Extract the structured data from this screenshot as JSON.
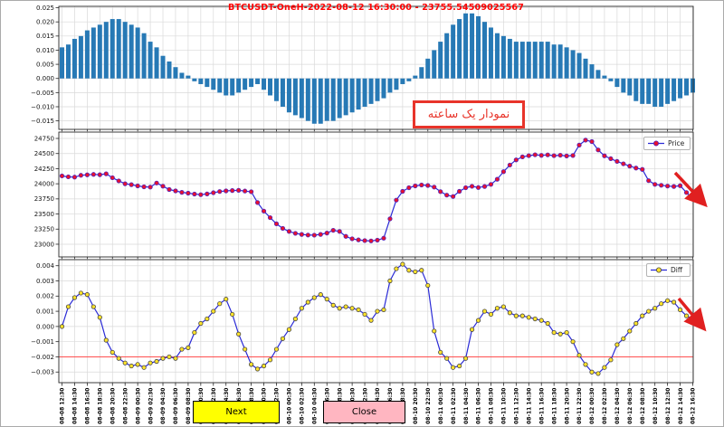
{
  "figure": {
    "title": "BTCUSDT-OneH-2022-08-12 16:30:00 - 23755.54509025567",
    "title_color": "#ff0000",
    "annotation": {
      "text": "نمودار یک ساعته",
      "color": "#e8342a"
    },
    "buttons": [
      {
        "label": "Next",
        "bg": "#ffff00"
      },
      {
        "label": "Close",
        "bg": "#ffb6c1"
      }
    ],
    "arrows": [
      {
        "location": "price-chart-end",
        "direction": "down-right",
        "color": "#e02020"
      },
      {
        "location": "diff-chart-end",
        "direction": "down-right",
        "color": "#e02020"
      }
    ]
  },
  "x_axis": {
    "points_count": 101,
    "label_every_nth_point": 2,
    "tick_labels": [
      "08-08 12:30",
      "08-08 14:30",
      "08-08 16:30",
      "08-08 18:30",
      "08-08 20:30",
      "08-08 22:30",
      "08-09 00:30",
      "08-09 02:30",
      "08-09 04:30",
      "08-09 06:30",
      "08-09 08:30",
      "08-09 10:30",
      "08-09 12:30",
      "08-09 14:30",
      "08-09 16:30",
      "08-09 18:30",
      "08-09 20:30",
      "08-09 22:30",
      "08-10 00:30",
      "08-10 02:30",
      "08-10 04:30",
      "08-10 06:30",
      "08-10 08:30",
      "08-10 10:30",
      "08-10 12:30",
      "08-10 14:30",
      "08-10 16:30",
      "08-10 18:30",
      "08-10 20:30",
      "08-10 22:30",
      "08-11 00:30",
      "08-11 02:30",
      "08-11 04:30",
      "08-11 06:30",
      "08-11 08:30",
      "08-11 10:30",
      "08-11 12:30",
      "08-11 14:30",
      "08-11 16:30",
      "08-11 18:30",
      "08-11 20:30",
      "08-11 22:30",
      "08-12 00:30",
      "08-12 02:30",
      "08-12 04:30",
      "08-12 06:30",
      "08-12 08:30",
      "08-12 10:30",
      "08-12 12:30",
      "08-12 14:30",
      "08-12 16:30"
    ]
  },
  "chart_data": [
    {
      "type": "bar",
      "name": "macd-histogram",
      "bar_color": "#2779b5",
      "ylim": [
        -0.018,
        0.0255
      ],
      "yticks": [
        {
          "v": 0.025,
          "label": "0.025"
        },
        {
          "v": 0.02,
          "label": "0.020"
        },
        {
          "v": 0.015,
          "label": "0.015"
        },
        {
          "v": 0.01,
          "label": "0.010"
        },
        {
          "v": 0.005,
          "label": "0.005"
        },
        {
          "v": 0.0,
          "label": "0.000"
        },
        {
          "v": -0.005,
          "label": "−0.005"
        },
        {
          "v": -0.01,
          "label": "−0.010"
        },
        {
          "v": -0.015,
          "label": "−0.015"
        }
      ],
      "values": [
        0.011,
        0.012,
        0.014,
        0.015,
        0.017,
        0.018,
        0.019,
        0.02,
        0.021,
        0.021,
        0.02,
        0.019,
        0.018,
        0.016,
        0.013,
        0.011,
        0.008,
        0.006,
        0.004,
        0.002,
        0.001,
        -0.001,
        -0.002,
        -0.003,
        -0.004,
        -0.005,
        -0.006,
        -0.006,
        -0.005,
        -0.004,
        -0.003,
        -0.002,
        -0.004,
        -0.006,
        -0.008,
        -0.01,
        -0.012,
        -0.013,
        -0.014,
        -0.015,
        -0.016,
        -0.016,
        -0.015,
        -0.015,
        -0.014,
        -0.013,
        -0.012,
        -0.011,
        -0.01,
        -0.009,
        -0.008,
        -0.007,
        -0.005,
        -0.004,
        -0.002,
        -0.001,
        0.001,
        0.004,
        0.007,
        0.01,
        0.013,
        0.016,
        0.019,
        0.021,
        0.023,
        0.023,
        0.022,
        0.02,
        0.018,
        0.016,
        0.015,
        0.014,
        0.013,
        0.013,
        0.013,
        0.013,
        0.013,
        0.013,
        0.012,
        0.012,
        0.011,
        0.01,
        0.009,
        0.007,
        0.005,
        0.003,
        0.001,
        -0.001,
        -0.003,
        -0.005,
        -0.006,
        -0.008,
        -0.009,
        -0.009,
        -0.01,
        -0.01,
        -0.009,
        -0.008,
        -0.007,
        -0.006,
        -0.005
      ]
    },
    {
      "type": "line",
      "name": "price",
      "legend": "Price",
      "line_color": "#2a2ad6",
      "marker_color": "#e8112d",
      "marker_edge": "#5522bb",
      "ylim": [
        22790,
        24855
      ],
      "yticks": [
        {
          "v": 24750,
          "label": "24750"
        },
        {
          "v": 24500,
          "label": "24500"
        },
        {
          "v": 24250,
          "label": "24250"
        },
        {
          "v": 24000,
          "label": "24000"
        },
        {
          "v": 23750,
          "label": "23750"
        },
        {
          "v": 23500,
          "label": "23500"
        },
        {
          "v": 23250,
          "label": "23250"
        },
        {
          "v": 23000,
          "label": "23000"
        }
      ],
      "values": [
        24130,
        24115,
        24110,
        24140,
        24148,
        24155,
        24150,
        24165,
        24100,
        24048,
        24000,
        23985,
        23965,
        23950,
        23945,
        24012,
        23960,
        23905,
        23882,
        23858,
        23845,
        23830,
        23820,
        23832,
        23852,
        23872,
        23882,
        23888,
        23892,
        23880,
        23868,
        23690,
        23548,
        23440,
        23338,
        23262,
        23212,
        23180,
        23162,
        23152,
        23150,
        23162,
        23185,
        23230,
        23212,
        23130,
        23090,
        23072,
        23060,
        23055,
        23068,
        23100,
        23420,
        23730,
        23875,
        23935,
        23965,
        23980,
        23972,
        23945,
        23870,
        23812,
        23790,
        23875,
        23935,
        23958,
        23938,
        23955,
        23990,
        24075,
        24200,
        24310,
        24395,
        24445,
        24465,
        24480,
        24470,
        24478,
        24465,
        24472,
        24460,
        24468,
        24640,
        24722,
        24698,
        24560,
        24462,
        24415,
        24370,
        24330,
        24292,
        24260,
        24238,
        24052,
        23990,
        23975,
        23962,
        23955,
        23968,
        23855,
        23755.5
      ]
    },
    {
      "type": "line",
      "name": "diff",
      "legend": "Diff",
      "line_color": "#2a2ad6",
      "marker_color": "#ffe32b",
      "marker_edge": "#444444",
      "ylim": [
        -0.0037,
        0.0044
      ],
      "hline": {
        "y": -0.002,
        "color": "#ff5050"
      },
      "yticks": [
        {
          "v": 0.004,
          "label": "0.004"
        },
        {
          "v": 0.003,
          "label": "0.003"
        },
        {
          "v": 0.002,
          "label": "0.002"
        },
        {
          "v": 0.001,
          "label": "0.001"
        },
        {
          "v": 0.0,
          "label": "0.000"
        },
        {
          "v": -0.001,
          "label": "−0.001"
        },
        {
          "v": -0.002,
          "label": "−0.002",
          "color": "#e03434"
        },
        {
          "v": -0.003,
          "label": "−0.003"
        }
      ],
      "values": [
        0.0,
        0.0013,
        0.0019,
        0.0022,
        0.0021,
        0.0013,
        0.0006,
        -0.0009,
        -0.0017,
        -0.0021,
        -0.0024,
        -0.0026,
        -0.0025,
        -0.0027,
        -0.0024,
        -0.0023,
        -0.0021,
        -0.002,
        -0.0021,
        -0.0015,
        -0.0014,
        -0.0004,
        0.0002,
        0.0005,
        0.001,
        0.0015,
        0.0018,
        0.0008,
        -0.0005,
        -0.0015,
        -0.0025,
        -0.0028,
        -0.0026,
        -0.0022,
        -0.0015,
        -0.0008,
        -0.0002,
        0.0005,
        0.0012,
        0.0016,
        0.0019,
        0.0021,
        0.0018,
        0.0014,
        0.0012,
        0.0013,
        0.0012,
        0.0011,
        0.0008,
        0.0004,
        0.001,
        0.0011,
        0.003,
        0.0038,
        0.0041,
        0.0037,
        0.0036,
        0.0037,
        0.0027,
        -0.0003,
        -0.0017,
        -0.0021,
        -0.0027,
        -0.0026,
        -0.0021,
        -0.0002,
        0.0004,
        0.001,
        0.0008,
        0.0012,
        0.0013,
        0.0009,
        0.0007,
        0.0007,
        0.0006,
        0.0005,
        0.0004,
        0.0002,
        -0.0004,
        -0.0005,
        -0.0004,
        -0.001,
        -0.0019,
        -0.0025,
        -0.003,
        -0.0031,
        -0.0027,
        -0.0022,
        -0.0012,
        -0.0008,
        -0.0003,
        0.0002,
        0.0007,
        0.001,
        0.0012,
        0.0015,
        0.0017,
        0.0016,
        0.0011,
        0.0007,
        0.0005
      ]
    }
  ]
}
